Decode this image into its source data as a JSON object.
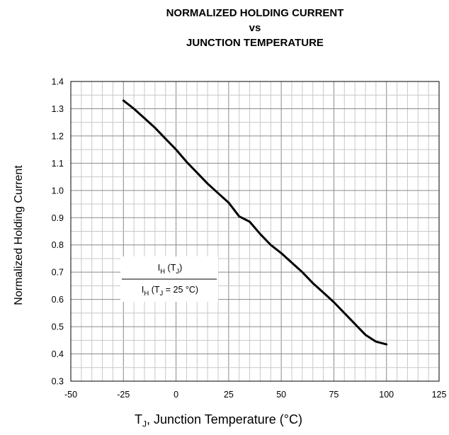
{
  "chart_data": {
    "type": "line",
    "title": [
      "NORMALIZED HOLDING CURRENT",
      "vs",
      "JUNCTION TEMPERATURE"
    ],
    "xlabel": {
      "main": "T",
      "sub": "J",
      "rest": ", Junction Temperature (°C)"
    },
    "ylabel": "Normalized Holding Current",
    "xlim": [
      -50,
      125
    ],
    "ylim": [
      0.3,
      1.4
    ],
    "x_ticks": [
      -50,
      -25,
      0,
      25,
      50,
      75,
      100,
      125
    ],
    "y_ticks": [
      0.3,
      0.4,
      0.5,
      0.6,
      0.7,
      0.8,
      0.9,
      1.0,
      1.1,
      1.2,
      1.3,
      1.4
    ],
    "y_tick_labels": [
      "0.3",
      "0.4",
      "0.5",
      "0.6",
      "0.7",
      "0.8",
      "0.9",
      "1.0",
      "1.1",
      "1.2",
      "1.3",
      "1.4"
    ],
    "grid": {
      "x_step": 5,
      "y_step": 0.05
    },
    "annotation": {
      "numerator": {
        "a": "I",
        "a_sub": "H",
        "b": " (T",
        "b_sub": "J",
        "c": ")"
      },
      "denominator": {
        "a": "I",
        "a_sub": "H",
        "b": " (T",
        "b_sub": "J",
        "c": " = 25 °C)"
      }
    },
    "series": [
      {
        "x": [
          -25,
          -20,
          -15,
          -10,
          -5,
          0,
          5,
          10,
          15,
          20,
          25,
          30,
          35,
          40,
          45,
          50,
          55,
          60,
          65,
          70,
          75,
          80,
          85,
          90,
          95,
          100
        ],
        "y": [
          1.33,
          1.3,
          1.265,
          1.23,
          1.19,
          1.15,
          1.105,
          1.065,
          1.025,
          0.99,
          0.955,
          0.905,
          0.885,
          0.84,
          0.8,
          0.77,
          0.735,
          0.7,
          0.66,
          0.625,
          0.59,
          0.55,
          0.51,
          0.47,
          0.445,
          0.435
        ]
      }
    ]
  }
}
